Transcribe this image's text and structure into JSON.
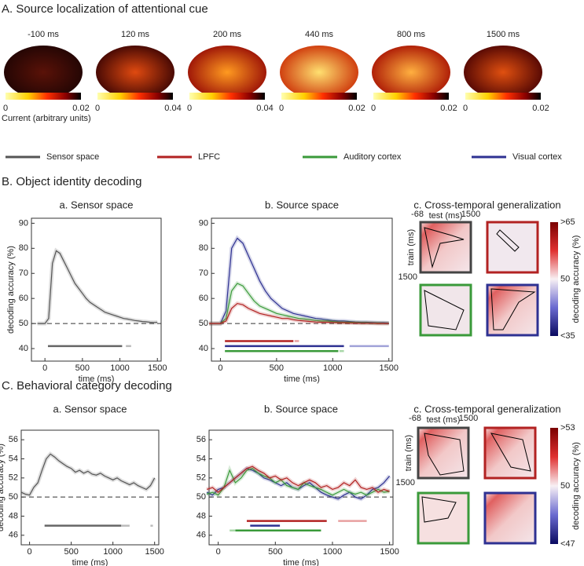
{
  "panel_a": {
    "title": "A. Source localization of attentional cue",
    "brains": [
      {
        "time": "-100 ms",
        "max": 0.02
      },
      {
        "time": "120 ms",
        "max": 0.04
      },
      {
        "time": "200 ms",
        "max": 0.04
      },
      {
        "time": "440 ms",
        "max": 0.02
      },
      {
        "time": "800 ms",
        "max": 0.02
      },
      {
        "time": "1500 ms",
        "max": 0.02
      }
    ],
    "colorbar_min": 0,
    "colorbar_label": "Current (arbitrary units)"
  },
  "legend": [
    {
      "name": "Sensor space",
      "color": "#555555"
    },
    {
      "name": "LPFC",
      "color": "#b22222"
    },
    {
      "name": "Auditory cortex",
      "color": "#3a9a3a"
    },
    {
      "name": "Visual cortex",
      "color": "#2e3192"
    }
  ],
  "section_b": {
    "title": "B. Object identity decoding"
  },
  "section_c": {
    "title": "C. Behavioral category decoding"
  },
  "generalization": {
    "title": "c. Cross-temporal generalization",
    "xlabel": "test (ms)",
    "ylabel": "train (ms)",
    "ticks": [
      -68,
      1500
    ],
    "colorbar_label": "decoding accuracy (%)",
    "b_scale": [
      ">65",
      "50",
      "<35"
    ],
    "c_scale": [
      ">53",
      "50",
      "<47"
    ]
  },
  "chart_data": [
    {
      "type": "line",
      "subtitle": "a. Sensor space",
      "xlabel": "time (ms)",
      "ylabel": "decoding accuracy (%)",
      "x": [
        -100,
        -50,
        0,
        50,
        100,
        150,
        200,
        250,
        300,
        350,
        400,
        450,
        500,
        550,
        600,
        650,
        700,
        750,
        800,
        850,
        900,
        950,
        1000,
        1050,
        1100,
        1150,
        1200,
        1250,
        1300,
        1350,
        1400,
        1450,
        1500
      ],
      "series": [
        {
          "color": "#555555",
          "values": [
            50,
            50,
            50,
            52,
            74,
            79,
            78,
            75,
            72,
            69,
            66,
            64,
            62,
            60,
            58.5,
            57.5,
            56.5,
            55.5,
            54.5,
            54,
            53.5,
            53,
            52.5,
            52,
            51.8,
            51.5,
            51.2,
            51,
            50.8,
            50.7,
            50.5,
            50.4,
            50.5
          ]
        }
      ],
      "xlim": [
        -180,
        1550
      ],
      "xticks": [
        0,
        500,
        1000,
        1500
      ],
      "ylim": [
        35,
        92
      ],
      "yticks": [
        40,
        50,
        60,
        70,
        80,
        90
      ],
      "chance": 50,
      "significance": [
        {
          "color": "#666666",
          "y": 41,
          "start": 40,
          "end": 1030
        },
        {
          "color": "#bbbbbb",
          "y": 41,
          "start": 1080,
          "end": 1150
        }
      ]
    },
    {
      "type": "line",
      "subtitle": "b. Source space",
      "xlabel": "time (ms)",
      "x": [
        -100,
        -50,
        0,
        50,
        100,
        150,
        200,
        250,
        300,
        350,
        400,
        450,
        500,
        550,
        600,
        650,
        700,
        750,
        800,
        850,
        900,
        950,
        1000,
        1050,
        1100,
        1150,
        1200,
        1250,
        1300,
        1350,
        1400,
        1450,
        1500
      ],
      "series": [
        {
          "color": "#2e3192",
          "values": [
            50,
            50,
            50,
            55,
            80,
            84,
            82,
            77,
            72,
            67,
            63,
            60,
            58,
            56,
            55,
            54,
            53.5,
            53,
            52.5,
            52,
            51.8,
            51.5,
            51.2,
            51,
            51,
            50.8,
            50.6,
            50.5,
            50.5,
            50.4,
            50.3,
            50.3,
            50.2
          ]
        },
        {
          "color": "#3a9a3a",
          "values": [
            50,
            50,
            50,
            52,
            63,
            66,
            65,
            62,
            59,
            57,
            56,
            55,
            54,
            53.5,
            53,
            52.5,
            52,
            51.8,
            51.5,
            51.2,
            51,
            51,
            50.8,
            50.6,
            50.5,
            50.5,
            50.4,
            50.3,
            50.3,
            50.2,
            50.2,
            50.1,
            50.1
          ]
        },
        {
          "color": "#b22222",
          "values": [
            50,
            50,
            50,
            51,
            56,
            58,
            57.5,
            56,
            55,
            54,
            53.5,
            53,
            52.5,
            52,
            52,
            51.5,
            51.2,
            51,
            50.8,
            50.6,
            50.5,
            50.5,
            50.4,
            50.3,
            50.3,
            50.2,
            50.2,
            50.1,
            50.1,
            50.1,
            50,
            50,
            50
          ]
        }
      ],
      "xlim": [
        -80,
        1530
      ],
      "xticks": [
        0,
        500,
        1000,
        1500
      ],
      "ylim": [
        35,
        92
      ],
      "yticks": [
        40,
        50,
        60,
        70,
        80,
        90
      ],
      "chance": 50,
      "significance": [
        {
          "color": "#b22222",
          "y": 43,
          "start": 40,
          "end": 650
        },
        {
          "color": "#e8a0a0",
          "y": 43,
          "start": 660,
          "end": 700
        },
        {
          "color": "#2e3192",
          "y": 41,
          "start": 40,
          "end": 1100
        },
        {
          "color": "#a0a2d8",
          "y": 41,
          "start": 1150,
          "end": 1500
        },
        {
          "color": "#3a9a3a",
          "y": 39,
          "start": 40,
          "end": 1050
        },
        {
          "color": "#a8d8a8",
          "y": 39,
          "start": 1060,
          "end": 1100
        }
      ]
    },
    {
      "type": "line",
      "subtitle": "a. Sensor space",
      "xlabel": "time (ms)",
      "ylabel": "decoding accuracy (%)",
      "x": [
        -100,
        -50,
        0,
        50,
        100,
        150,
        200,
        250,
        300,
        350,
        400,
        450,
        500,
        550,
        600,
        650,
        700,
        750,
        800,
        850,
        900,
        950,
        1000,
        1050,
        1100,
        1150,
        1200,
        1250,
        1300,
        1350,
        1400,
        1450,
        1500
      ],
      "series": [
        {
          "color": "#555555",
          "values": [
            50.5,
            50.3,
            50.2,
            51,
            51.5,
            52.8,
            54,
            54.5,
            54.2,
            53.8,
            53.5,
            53.2,
            53,
            52.6,
            52.8,
            52.5,
            52.7,
            52.4,
            52.3,
            52.5,
            52.2,
            52,
            51.8,
            52,
            51.7,
            51.5,
            51.3,
            51.5,
            51.2,
            51,
            50.8,
            51.2,
            52
          ]
        }
      ],
      "xlim": [
        -100,
        1550
      ],
      "xticks": [
        0,
        500,
        1000,
        1500
      ],
      "ylim": [
        45,
        57
      ],
      "yticks": [
        46,
        48,
        50,
        52,
        54,
        56
      ],
      "chance": 50,
      "significance": [
        {
          "color": "#666666",
          "y": 47,
          "start": 180,
          "end": 1100
        },
        {
          "color": "#bbbbbb",
          "y": 47,
          "start": 1100,
          "end": 1200
        },
        {
          "color": "#bbbbbb",
          "y": 47,
          "start": 1450,
          "end": 1480
        }
      ]
    },
    {
      "type": "line",
      "subtitle": "b. Source space",
      "xlabel": "time (ms)",
      "x": [
        -100,
        -50,
        0,
        50,
        100,
        150,
        200,
        250,
        300,
        350,
        400,
        450,
        500,
        550,
        600,
        650,
        700,
        750,
        800,
        850,
        900,
        950,
        1000,
        1050,
        1100,
        1150,
        1200,
        1250,
        1300,
        1350,
        1400,
        1450,
        1500
      ],
      "series": [
        {
          "color": "#2e3192",
          "values": [
            50.5,
            50.2,
            50.8,
            51,
            51.5,
            52,
            52.5,
            53,
            52.8,
            52.5,
            52,
            51.8,
            51.5,
            51.2,
            51.5,
            51,
            50.8,
            51.2,
            51.5,
            51,
            50.5,
            50.2,
            50,
            49.8,
            50.2,
            50.5,
            50,
            49.8,
            50.2,
            50.8,
            51,
            51.5,
            52.2
          ]
        },
        {
          "color": "#3a9a3a",
          "values": [
            50.3,
            50.5,
            50.2,
            51,
            52.8,
            51.5,
            52,
            52.8,
            53,
            52.5,
            52.2,
            52,
            51.5,
            51.8,
            51.2,
            51,
            50.8,
            51.5,
            51.2,
            51,
            50.8,
            50.5,
            50.2,
            50.5,
            50.8,
            50.5,
            50.3,
            50.5,
            50.2,
            50.5,
            50.8,
            50.5,
            50.6
          ]
        },
        {
          "color": "#b22222",
          "values": [
            50.8,
            51,
            50.5,
            51,
            51.5,
            52,
            52.5,
            53,
            53.2,
            52.8,
            52.5,
            52,
            52.2,
            51.8,
            52,
            51.5,
            51.2,
            51.5,
            51.8,
            51.5,
            51,
            51.2,
            50.8,
            51,
            51.5,
            51.2,
            51.8,
            51,
            50.8,
            51,
            50.5,
            50.8,
            50.6
          ]
        }
      ],
      "xlim": [
        -80,
        1530
      ],
      "xticks": [
        0,
        500,
        1000,
        1500
      ],
      "ylim": [
        45,
        57
      ],
      "yticks": [
        46,
        48,
        50,
        52,
        54,
        56
      ],
      "chance": 50,
      "significance": [
        {
          "color": "#b22222",
          "y": 47.5,
          "start": 250,
          "end": 950
        },
        {
          "color": "#e8a0a0",
          "y": 47.5,
          "start": 1050,
          "end": 1300
        },
        {
          "color": "#2e3192",
          "y": 47,
          "start": 280,
          "end": 540
        },
        {
          "color": "#3a9a3a",
          "y": 46.5,
          "start": 150,
          "end": 900
        },
        {
          "color": "#a8d8a8",
          "y": 46.5,
          "start": 100,
          "end": 150
        }
      ]
    }
  ]
}
